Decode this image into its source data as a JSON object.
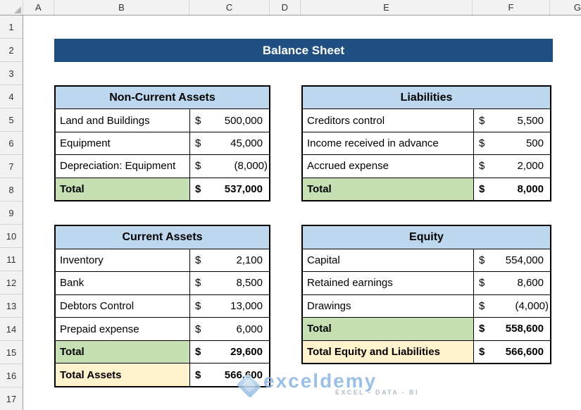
{
  "spreadsheet": {
    "column_headers": [
      "A",
      "B",
      "C",
      "D",
      "E",
      "F",
      "G"
    ],
    "row_headers": [
      "1",
      "2",
      "3",
      "4",
      "5",
      "6",
      "7",
      "8",
      "9",
      "10",
      "11",
      "12",
      "13",
      "14",
      "15",
      "16",
      "17"
    ]
  },
  "banner": {
    "title": "Balance Sheet"
  },
  "tables": [
    {
      "name": "Non-Current Assets",
      "rows": [
        {
          "label": "Land and Buildings",
          "currency": "$",
          "value": "500,000"
        },
        {
          "label": "Equipment",
          "currency": "$",
          "value": "45,000"
        },
        {
          "label": "Depreciation: Equipment",
          "currency": "$",
          "value": "(8,000)"
        },
        {
          "label": "Total",
          "currency": "$",
          "value": "537,000"
        }
      ]
    },
    {
      "name": "Liabilities",
      "rows": [
        {
          "label": "Creditors control",
          "currency": "$",
          "value": "5,500"
        },
        {
          "label": "Income received in advance",
          "currency": "$",
          "value": "500"
        },
        {
          "label": "Accrued expense",
          "currency": "$",
          "value": "2,000"
        },
        {
          "label": "Total",
          "currency": "$",
          "value": "8,000"
        }
      ]
    },
    {
      "name": "Current Assets",
      "rows": [
        {
          "label": "Inventory",
          "currency": "$",
          "value": "2,100"
        },
        {
          "label": "Bank",
          "currency": "$",
          "value": "8,500"
        },
        {
          "label": "Debtors Control",
          "currency": "$",
          "value": "13,000"
        },
        {
          "label": "Prepaid expense",
          "currency": "$",
          "value": "6,000"
        },
        {
          "label": "Total",
          "currency": "$",
          "value": "29,600"
        },
        {
          "label": "Total Assets",
          "currency": "$",
          "value": "566,600"
        }
      ]
    },
    {
      "name": "Equity",
      "rows": [
        {
          "label": "Capital",
          "currency": "$",
          "value": "554,000"
        },
        {
          "label": "Retained earnings",
          "currency": "$",
          "value": "8,600"
        },
        {
          "label": "Drawings",
          "currency": "$",
          "value": "(4,000)"
        },
        {
          "label": "Total",
          "currency": "$",
          "value": "558,600"
        },
        {
          "label": "Total Equity and Liabilities",
          "currency": "$",
          "value": "566,600"
        }
      ]
    }
  ],
  "watermark": {
    "brand": "exceldemy",
    "tagline": "EXCEL - DATA - BI"
  },
  "colors": {
    "banner_bg": "#1F5081",
    "table_header_fill": "#BDD7EE",
    "total_fill": "#C6E0B4",
    "grand_total_fill": "#FFF2CC",
    "table_border": "#000000",
    "header_strip_bg": "#F2F2F2",
    "watermark_blue": "#89B5E0"
  }
}
